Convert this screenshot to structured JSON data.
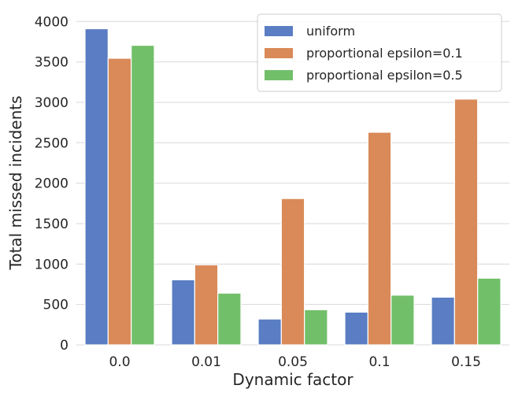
{
  "chart_data": {
    "type": "bar",
    "xlabel": "Dynamic factor",
    "ylabel": "Total missed incidents",
    "categories": [
      "0.0",
      "0.01",
      "0.05",
      "0.1",
      "0.15"
    ],
    "series": [
      {
        "name": "uniform",
        "color": "#5a7dc3",
        "values": [
          3910,
          805,
          320,
          405,
          590
        ]
      },
      {
        "name": "proportional epsilon=0.1",
        "color": "#d98a58",
        "values": [
          3545,
          990,
          1810,
          2630,
          3040
        ]
      },
      {
        "name": "proportional epsilon=0.5",
        "color": "#72bf6a",
        "values": [
          3705,
          640,
          435,
          615,
          825
        ]
      }
    ],
    "ylim": [
      0,
      4100
    ],
    "yticks": [
      0,
      500,
      1000,
      1500,
      2000,
      2500,
      3000,
      3500,
      4000
    ],
    "grid": "horizontal",
    "legend_position": "top-right",
    "gridline_color": "#d8d8d8"
  }
}
